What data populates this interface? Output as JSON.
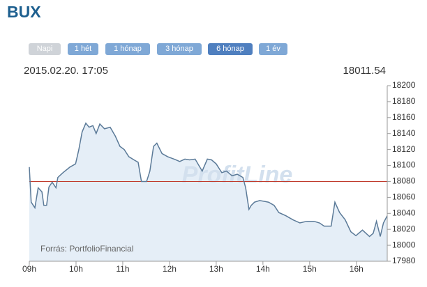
{
  "header": {
    "title": "BUX"
  },
  "buttons": [
    "Napi",
    "1 hét",
    "1 hónap",
    "3 hónap",
    "6 hónap",
    "1 év"
  ],
  "info": {
    "timestamp": "2015.02.20. 17:05",
    "last": "18011.54"
  },
  "chart_data": {
    "type": "line",
    "watermark": "ProfitLine",
    "source": "Forrás: PortfolioFinancial",
    "color": "#5b7a98",
    "area_color": "#e5eef7",
    "reference": 18080,
    "reference_color": "#c0392b",
    "x": [
      9.0,
      9.04,
      9.12,
      9.19,
      9.27,
      9.31,
      9.37,
      9.42,
      9.49,
      9.57,
      9.61,
      9.72,
      9.87,
      9.99,
      10.06,
      10.13,
      10.21,
      10.28,
      10.36,
      10.43,
      10.51,
      10.61,
      10.73,
      10.84,
      10.94,
      11.03,
      11.13,
      11.24,
      11.33,
      11.4,
      11.51,
      11.58,
      11.66,
      11.73,
      11.84,
      11.96,
      12.1,
      12.22,
      12.33,
      12.43,
      12.55,
      12.7,
      12.81,
      12.9,
      13.0,
      13.12,
      13.22,
      13.34,
      13.45,
      13.57,
      13.63,
      13.7,
      13.75,
      13.82,
      13.93,
      14.12,
      14.24,
      14.34,
      14.49,
      14.64,
      14.79,
      14.94,
      15.09,
      15.21,
      15.31,
      15.46,
      15.54,
      15.64,
      15.76,
      15.88,
      15.99,
      16.13,
      16.28,
      16.36,
      16.43,
      16.51,
      16.58,
      16.66
    ],
    "values": [
      18098,
      18054,
      18047,
      18072,
      18067,
      18050,
      18050,
      18073,
      18079,
      18072,
      18085,
      18091,
      18098,
      18102,
      18120,
      18142,
      18153,
      18148,
      18150,
      18140,
      18152,
      18146,
      18148,
      18137,
      18124,
      18120,
      18111,
      18107,
      18104,
      18080,
      18080,
      18093,
      18124,
      18128,
      18115,
      18111,
      18108,
      18105,
      18108,
      18107,
      18108,
      18093,
      18108,
      18107,
      18102,
      18091,
      18093,
      18087,
      18089,
      18085,
      18072,
      18045,
      18050,
      18054,
      18056,
      18054,
      18050,
      18041,
      18037,
      18032,
      18028,
      18030,
      18030,
      18028,
      18024,
      18024,
      18054,
      18041,
      18032,
      18017,
      18012,
      18019,
      18011,
      18015,
      18030,
      18011,
      18028,
      18037
    ],
    "xlim": [
      9,
      16.66
    ],
    "xticks": [
      {
        "value": 9,
        "label": "09h"
      },
      {
        "value": 10,
        "label": "10h"
      },
      {
        "value": 11,
        "label": "11h"
      },
      {
        "value": 12,
        "label": "12h"
      },
      {
        "value": 13,
        "label": "13h"
      },
      {
        "value": 14,
        "label": "14h"
      },
      {
        "value": 15,
        "label": "15h"
      },
      {
        "value": 16,
        "label": "16h"
      }
    ],
    "ylim": [
      17980,
      18200
    ],
    "yticks": [
      17980,
      18000,
      18020,
      18040,
      18060,
      18080,
      18100,
      18120,
      18140,
      18160,
      18180,
      18200
    ]
  }
}
